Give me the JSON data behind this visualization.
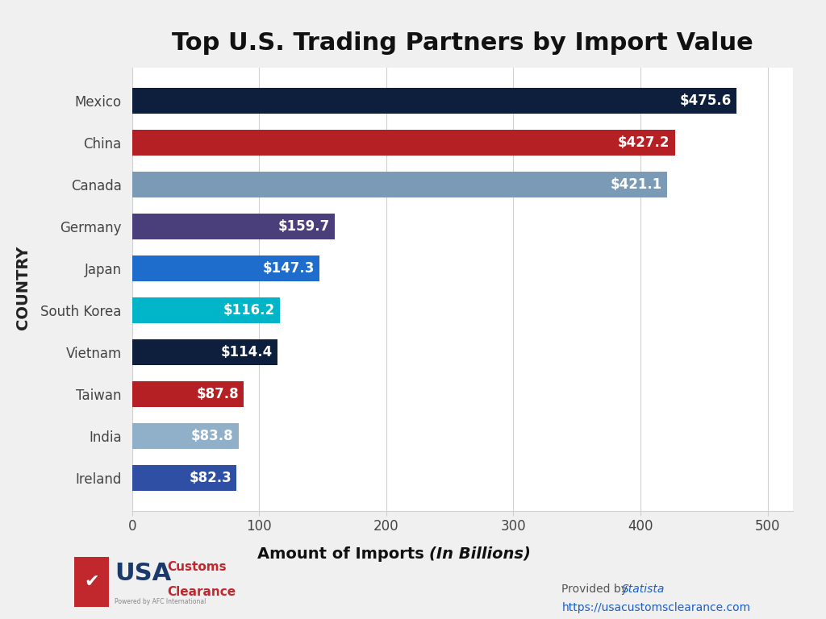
{
  "title": "Top U.S. Trading Partners by Import Value",
  "countries": [
    "Ireland",
    "India",
    "Taiwan",
    "Vietnam",
    "South Korea",
    "Japan",
    "Germany",
    "Canada",
    "China",
    "Mexico"
  ],
  "values": [
    82.3,
    83.8,
    87.8,
    114.4,
    116.2,
    147.3,
    159.7,
    421.1,
    427.2,
    475.6
  ],
  "labels": [
    "$82.3",
    "$83.8",
    "$87.8",
    "$114.4",
    "$116.2",
    "$147.3",
    "$159.7",
    "$421.1",
    "$427.2",
    "$475.6"
  ],
  "bar_colors": [
    "#2e4fa3",
    "#8fb0c8",
    "#b52025",
    "#0d1f3c",
    "#00b5c8",
    "#1e6dcd",
    "#4a3f7a",
    "#7a9ab5",
    "#b52025",
    "#0d1f3c"
  ],
  "xlabel_main": "Amount of Imports ",
  "xlabel_italic": "(In Billions)",
  "ylabel": "COUNTRY",
  "xlim": [
    0,
    520
  ],
  "xticks": [
    0,
    100,
    200,
    300,
    400,
    500
  ],
  "background_color": "#f0f0f0",
  "plot_bg_color": "#ffffff",
  "title_fontsize": 22,
  "tick_fontsize": 12,
  "ylabel_fontsize": 14,
  "bar_label_fontsize": 12,
  "footer_text1": "Provided by ",
  "footer_link1": "Statista",
  "footer_text2": "https://usacustomsclearance.com",
  "bar_height": 0.6
}
